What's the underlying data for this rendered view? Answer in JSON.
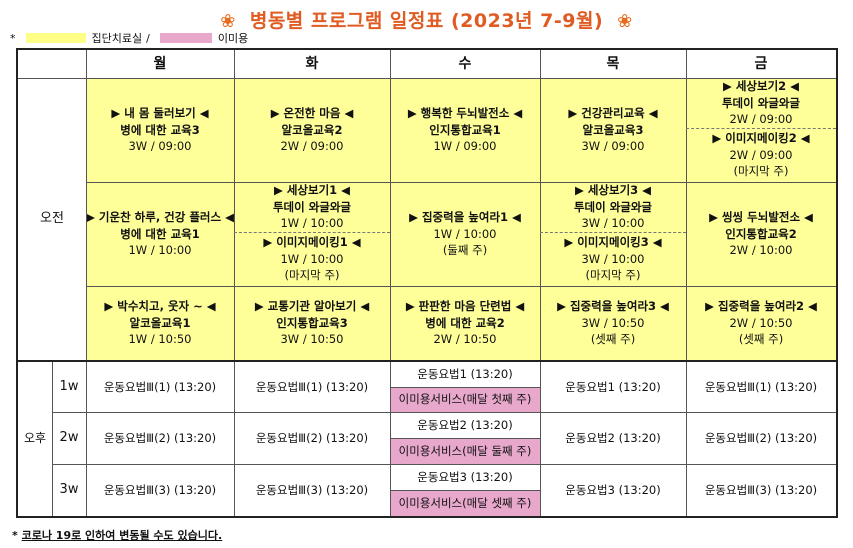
{
  "title": "병동별 프로그램 일정표 (2023년 7-9월)",
  "title_ornament": "❀",
  "legend": {
    "bullet": "*",
    "group_label": "집단치료실",
    "separator": "/",
    "beauty_label": "이미용"
  },
  "colors": {
    "am_cell": "#ffff99",
    "beauty_cell": "#e8a8cc",
    "title": "#e05b22"
  },
  "days": [
    "월",
    "화",
    "수",
    "목",
    "금"
  ],
  "am": {
    "label": "오전",
    "row1": {
      "mon": {
        "title": "▶ 내 몸 둘러보기 ◀",
        "sub": "병에 대한 교육3",
        "time": "3W / 09:00"
      },
      "tue": {
        "title": "▶ 온전한 마음 ◀",
        "sub": "알코올교육2",
        "time": "2W / 09:00"
      },
      "wed": {
        "title": "▶ 행복한 두뇌발전소 ◀",
        "sub": "인지통합교육1",
        "time": "1W / 09:00"
      },
      "thu": {
        "title": "▶ 건강관리교육 ◀",
        "sub": "알코올교육3",
        "time": "3W / 09:00"
      },
      "fri_a": {
        "title": "▶ 세상보기2 ◀",
        "sub": "투데이 와글와글",
        "time": "2W / 09:00"
      },
      "fri_b": {
        "title": "▶ 이미지메이킹2 ◀",
        "time": "2W / 09:00",
        "note": "(마지막 주)"
      }
    },
    "row2": {
      "mon": {
        "title": "▶ 기운찬 하루, 건강 플러스 ◀",
        "sub": "병에 대한 교육1",
        "time": "1W / 10:00"
      },
      "tue_a": {
        "title": "▶ 세상보기1 ◀",
        "sub": "투데이 와글와글",
        "time": "1W / 10:00"
      },
      "tue_b": {
        "title": "▶ 이미지메이킹1 ◀",
        "time": "1W / 10:00",
        "note": "(마지막 주)"
      },
      "wed": {
        "title": "▶ 집중력을 높여라1 ◀",
        "time": "1W / 10:00",
        "note": "(둘째 주)"
      },
      "thu_a": {
        "title": "▶ 세상보기3 ◀",
        "sub": "투데이 와글와글",
        "time": "3W / 10:00"
      },
      "thu_b": {
        "title": "▶ 이미지메이킹3 ◀",
        "time": "3W / 10:00",
        "note": "(마지막 주)"
      },
      "fri": {
        "title": "▶ 씽씽 두뇌발전소 ◀",
        "sub": "인지통합교육2",
        "time": "2W / 10:00"
      }
    },
    "row3": {
      "mon": {
        "title": "▶ 박수치고, 웃자 ~ ◀",
        "sub": "알코올교육1",
        "time": "1W / 10:50"
      },
      "tue": {
        "title": "▶ 교통기관 알아보기 ◀",
        "sub": "인지통합교육3",
        "time": "3W / 10:50"
      },
      "wed": {
        "title": "▶ 판판한 마음 단련법 ◀",
        "sub": "병에 대한 교육2",
        "time": "2W / 10:50"
      },
      "thu": {
        "title": "▶ 집중력을 높여라3 ◀",
        "time": "3W / 10:50",
        "note": "(셋째 주)"
      },
      "fri": {
        "title": "▶ 집중력을 높여라2 ◀",
        "time": "2W / 10:50",
        "note": "(셋째 주)"
      }
    }
  },
  "pm": {
    "label": "오후",
    "rows": [
      {
        "ward": "1w",
        "mon": "운동요법Ⅲ(1) (13:20)",
        "tue": "운동요법Ⅲ(1) (13:20)",
        "wed": "운동요법1 (13:20)",
        "wed_beauty": "이미용서비스(매달 첫째 주)",
        "thu": "운동요법1 (13:20)",
        "fri": "운동요법Ⅲ(1) (13:20)"
      },
      {
        "ward": "2w",
        "mon": "운동요법Ⅲ(2) (13:20)",
        "tue": "운동요법Ⅲ(2) (13:20)",
        "wed": "운동요법2 (13:20)",
        "wed_beauty": "이미용서비스(매달 둘째 주)",
        "thu": "운동요법2 (13:20)",
        "fri": "운동요법Ⅲ(2) (13:20)"
      },
      {
        "ward": "3w",
        "mon": "운동요법Ⅲ(3) (13:20)",
        "tue": "운동요법Ⅲ(3) (13:20)",
        "wed": "운동요법3 (13:20)",
        "wed_beauty": "이미용서비스(매달 셋째 주)",
        "thu": "운동요법3 (13:20)",
        "fri": "운동요법Ⅲ(3) (13:20)"
      }
    ]
  },
  "footnote": {
    "bullet": "*",
    "text": "코로나 19로 인하여 변동될 수도 있습니다."
  }
}
